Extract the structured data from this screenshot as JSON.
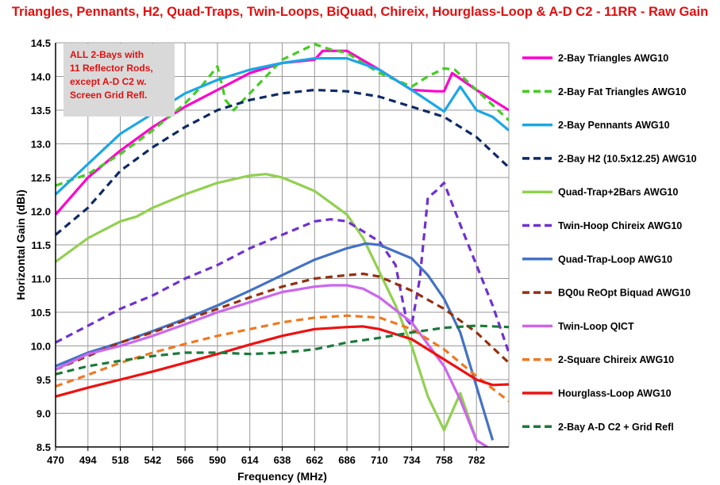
{
  "chart_data": {
    "type": "line",
    "title": "Triangles, Pennants, H2, Quad-Traps, Twin-Loops, BiQuad, Chireix, Hourglass-Loop & A-D C2 - 11RR - Raw Gain",
    "xlabel": "Frequency (MHz)",
    "ylabel": "Horizontal Gain (dBi)",
    "xlim": [
      470,
      806
    ],
    "ylim": [
      8.5,
      14.5
    ],
    "xticks": [
      "470",
      "494",
      "518",
      "542",
      "566",
      "590",
      "614",
      "638",
      "662",
      "686",
      "710",
      "734",
      "758",
      "782"
    ],
    "yticks": [
      "14.5",
      "14.0",
      "13.5",
      "13.0",
      "12.5",
      "12.0",
      "11.5",
      "11.0",
      "10.5",
      "10.0",
      "9.5",
      "9.0",
      "8.5"
    ],
    "grid": true,
    "legend_position": "right",
    "annotation": [
      "ALL 2-Bays with",
      "11 Reflector Rods,",
      "except A-D C2 w.",
      "Screen Grid Refl."
    ],
    "series": [
      {
        "name": "2-Bay Triangles AWG10",
        "color": "#ff00cc",
        "dash": "solid",
        "points": [
          [
            470,
            11.95
          ],
          [
            494,
            12.5
          ],
          [
            518,
            12.9
          ],
          [
            542,
            13.25
          ],
          [
            566,
            13.55
          ],
          [
            590,
            13.8
          ],
          [
            614,
            14.05
          ],
          [
            638,
            14.2
          ],
          [
            662,
            14.25
          ],
          [
            668,
            14.38
          ],
          [
            686,
            14.38
          ],
          [
            710,
            14.1
          ],
          [
            734,
            13.8
          ],
          [
            752,
            13.78
          ],
          [
            758,
            13.78
          ],
          [
            764,
            14.05
          ],
          [
            782,
            13.8
          ],
          [
            806,
            13.5
          ]
        ]
      },
      {
        "name": "2-Bay Fat Triangles AWG10",
        "color": "#44cc22",
        "dash": "dashed",
        "points": [
          [
            470,
            12.38
          ],
          [
            494,
            12.55
          ],
          [
            518,
            12.85
          ],
          [
            542,
            13.2
          ],
          [
            566,
            13.6
          ],
          [
            578,
            13.85
          ],
          [
            590,
            14.15
          ],
          [
            596,
            13.65
          ],
          [
            602,
            13.5
          ],
          [
            614,
            13.75
          ],
          [
            638,
            14.25
          ],
          [
            662,
            14.48
          ],
          [
            674,
            14.4
          ],
          [
            686,
            14.35
          ],
          [
            710,
            14.05
          ],
          [
            734,
            13.85
          ],
          [
            746,
            14.0
          ],
          [
            758,
            14.12
          ],
          [
            766,
            14.1
          ],
          [
            782,
            13.8
          ],
          [
            806,
            13.35
          ]
        ]
      },
      {
        "name": "2-Bay Pennants AWG10",
        "color": "#1aa7e6",
        "dash": "solid",
        "points": [
          [
            470,
            12.25
          ],
          [
            494,
            12.7
          ],
          [
            518,
            13.15
          ],
          [
            542,
            13.45
          ],
          [
            566,
            13.75
          ],
          [
            590,
            13.95
          ],
          [
            614,
            14.1
          ],
          [
            638,
            14.2
          ],
          [
            662,
            14.27
          ],
          [
            686,
            14.27
          ],
          [
            710,
            14.1
          ],
          [
            734,
            13.8
          ],
          [
            758,
            13.48
          ],
          [
            770,
            13.85
          ],
          [
            782,
            13.5
          ],
          [
            794,
            13.4
          ],
          [
            806,
            13.2
          ]
        ]
      },
      {
        "name": "2-Bay H2 (10.5x12.25)  AWG10",
        "color": "#0d2a66",
        "dash": "dashed",
        "points": [
          [
            470,
            11.65
          ],
          [
            494,
            12.05
          ],
          [
            518,
            12.6
          ],
          [
            542,
            12.95
          ],
          [
            566,
            13.25
          ],
          [
            590,
            13.5
          ],
          [
            614,
            13.65
          ],
          [
            638,
            13.75
          ],
          [
            662,
            13.8
          ],
          [
            686,
            13.78
          ],
          [
            710,
            13.7
          ],
          [
            734,
            13.55
          ],
          [
            758,
            13.4
          ],
          [
            782,
            13.1
          ],
          [
            806,
            12.65
          ]
        ]
      },
      {
        "name": "Quad-Trap+2Bars  AWG10",
        "color": "#92d050",
        "dash": "solid",
        "points": [
          [
            470,
            11.25
          ],
          [
            494,
            11.6
          ],
          [
            518,
            11.85
          ],
          [
            530,
            11.92
          ],
          [
            542,
            12.05
          ],
          [
            566,
            12.25
          ],
          [
            590,
            12.42
          ],
          [
            614,
            12.53
          ],
          [
            626,
            12.55
          ],
          [
            638,
            12.5
          ],
          [
            662,
            12.3
          ],
          [
            686,
            11.95
          ],
          [
            698,
            11.6
          ],
          [
            710,
            11.1
          ],
          [
            722,
            10.6
          ],
          [
            734,
            10.0
          ],
          [
            746,
            9.25
          ],
          [
            758,
            8.75
          ],
          [
            770,
            9.3
          ],
          [
            782,
            8.6
          ],
          [
            790,
            8.5
          ]
        ]
      },
      {
        "name": "Twin-Hoop Chireix AWG10",
        "color": "#7030d0",
        "dash": "dashed",
        "points": [
          [
            470,
            10.05
          ],
          [
            494,
            10.3
          ],
          [
            518,
            10.55
          ],
          [
            542,
            10.75
          ],
          [
            566,
            11.0
          ],
          [
            590,
            11.2
          ],
          [
            614,
            11.45
          ],
          [
            638,
            11.65
          ],
          [
            662,
            11.85
          ],
          [
            674,
            11.88
          ],
          [
            686,
            11.85
          ],
          [
            710,
            11.55
          ],
          [
            722,
            11.2
          ],
          [
            730,
            10.4
          ],
          [
            734,
            10.3
          ],
          [
            740,
            11.0
          ],
          [
            746,
            12.2
          ],
          [
            752,
            12.3
          ],
          [
            758,
            12.42
          ],
          [
            770,
            11.8
          ],
          [
            782,
            11.2
          ],
          [
            794,
            10.6
          ],
          [
            806,
            9.9
          ]
        ]
      },
      {
        "name": "Quad-Trap-Loop  AWG10",
        "color": "#4472c4",
        "dash": "solid",
        "points": [
          [
            470,
            9.7
          ],
          [
            494,
            9.9
          ],
          [
            518,
            10.05
          ],
          [
            542,
            10.22
          ],
          [
            566,
            10.4
          ],
          [
            590,
            10.6
          ],
          [
            614,
            10.82
          ],
          [
            638,
            11.05
          ],
          [
            662,
            11.28
          ],
          [
            686,
            11.45
          ],
          [
            700,
            11.52
          ],
          [
            710,
            11.5
          ],
          [
            734,
            11.3
          ],
          [
            746,
            11.05
          ],
          [
            758,
            10.7
          ],
          [
            770,
            10.2
          ],
          [
            782,
            9.4
          ],
          [
            794,
            8.6
          ]
        ]
      },
      {
        "name": "BQ0u ReOpt Biquad AWG10",
        "color": "#953010",
        "dash": "dashed",
        "points": [
          [
            470,
            9.65
          ],
          [
            494,
            9.85
          ],
          [
            518,
            10.05
          ],
          [
            542,
            10.2
          ],
          [
            566,
            10.38
          ],
          [
            590,
            10.55
          ],
          [
            614,
            10.72
          ],
          [
            638,
            10.88
          ],
          [
            662,
            11.0
          ],
          [
            686,
            11.05
          ],
          [
            698,
            11.07
          ],
          [
            710,
            11.03
          ],
          [
            734,
            10.82
          ],
          [
            758,
            10.55
          ],
          [
            782,
            10.2
          ],
          [
            806,
            9.75
          ]
        ]
      },
      {
        "name": "Twin-Loop QICT",
        "color": "#cc66ee",
        "dash": "solid",
        "points": [
          [
            470,
            9.65
          ],
          [
            494,
            9.88
          ],
          [
            518,
            10.0
          ],
          [
            542,
            10.15
          ],
          [
            566,
            10.32
          ],
          [
            590,
            10.5
          ],
          [
            614,
            10.65
          ],
          [
            638,
            10.8
          ],
          [
            662,
            10.88
          ],
          [
            674,
            10.9
          ],
          [
            686,
            10.9
          ],
          [
            698,
            10.85
          ],
          [
            710,
            10.72
          ],
          [
            734,
            10.35
          ],
          [
            758,
            9.7
          ],
          [
            770,
            9.2
          ],
          [
            782,
            8.6
          ],
          [
            790,
            8.5
          ]
        ]
      },
      {
        "name": "2-Square Chireix AWG10",
        "color": "#f07820",
        "dash": "dashed",
        "points": [
          [
            470,
            9.4
          ],
          [
            494,
            9.57
          ],
          [
            518,
            9.75
          ],
          [
            542,
            9.9
          ],
          [
            566,
            10.03
          ],
          [
            590,
            10.15
          ],
          [
            614,
            10.25
          ],
          [
            638,
            10.35
          ],
          [
            662,
            10.42
          ],
          [
            686,
            10.45
          ],
          [
            710,
            10.42
          ],
          [
            734,
            10.25
          ],
          [
            758,
            9.95
          ],
          [
            782,
            9.55
          ],
          [
            806,
            9.18
          ]
        ]
      },
      {
        "name": "Hourglass-Loop  AWG10",
        "color": "#ee1111",
        "dash": "solid",
        "points": [
          [
            470,
            9.25
          ],
          [
            494,
            9.38
          ],
          [
            518,
            9.5
          ],
          [
            542,
            9.62
          ],
          [
            566,
            9.75
          ],
          [
            590,
            9.88
          ],
          [
            614,
            10.02
          ],
          [
            638,
            10.15
          ],
          [
            662,
            10.25
          ],
          [
            686,
            10.28
          ],
          [
            698,
            10.29
          ],
          [
            710,
            10.25
          ],
          [
            734,
            10.1
          ],
          [
            758,
            9.8
          ],
          [
            782,
            9.5
          ],
          [
            794,
            9.42
          ],
          [
            806,
            9.43
          ]
        ]
      },
      {
        "name": "2-Bay A-D C2 + Grid Refl",
        "color": "#1a7a3a",
        "dash": "dashed",
        "points": [
          [
            470,
            9.58
          ],
          [
            494,
            9.7
          ],
          [
            518,
            9.78
          ],
          [
            542,
            9.85
          ],
          [
            566,
            9.9
          ],
          [
            590,
            9.9
          ],
          [
            614,
            9.88
          ],
          [
            638,
            9.9
          ],
          [
            662,
            9.95
          ],
          [
            686,
            10.05
          ],
          [
            710,
            10.12
          ],
          [
            734,
            10.2
          ],
          [
            758,
            10.27
          ],
          [
            782,
            10.3
          ],
          [
            806,
            10.28
          ]
        ]
      }
    ]
  }
}
